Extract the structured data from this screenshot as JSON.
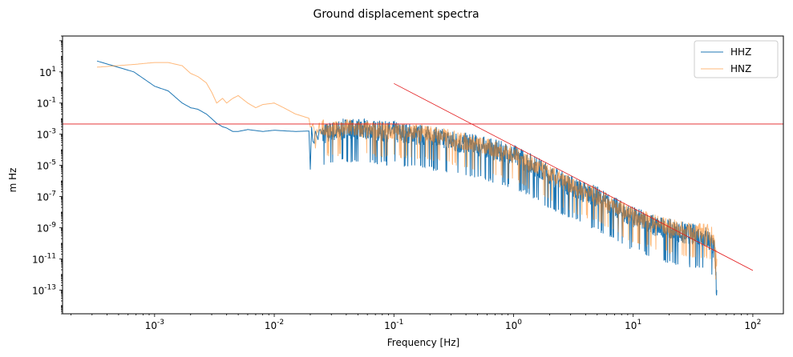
{
  "chart_data": {
    "type": "line",
    "title": "Ground displacement spectra",
    "xlabel": "Frequency [Hz]",
    "ylabel": "m Hz",
    "xscale": "log",
    "yscale": "log",
    "xlim": [
      0.00017,
      180
    ],
    "ylim": [
      3e-15,
      2000
    ],
    "x_tick_labels": [
      "10^-3",
      "10^-2",
      "10^-1",
      "10^0",
      "10^1",
      "10^2"
    ],
    "x_tick_values": [
      0.001,
      0.01,
      0.1,
      1,
      10,
      100
    ],
    "y_tick_labels": [
      "10^1",
      "10^-1",
      "10^-3",
      "10^-5",
      "10^-7",
      "10^-9",
      "10^-11",
      "10^-13"
    ],
    "y_tick_values": [
      10,
      0.1,
      0.001,
      1e-05,
      1e-07,
      1e-09,
      1e-11,
      1e-13
    ],
    "legend": "top-right",
    "colors": {
      "HHZ": "#1f77b4",
      "HNZ": "#ff7f0e",
      "reference": "#e31a1c"
    },
    "series": [
      {
        "name": "HHZ",
        "x": [
          0.00033,
          0.00067,
          0.001,
          0.0013,
          0.0017,
          0.002,
          0.0023,
          0.0027,
          0.003,
          0.0033,
          0.0037,
          0.004,
          0.0045,
          0.005,
          0.006,
          0.008,
          0.01,
          0.015,
          0.02,
          0.025,
          0.03,
          0.035,
          0.04,
          0.05,
          0.06,
          0.08,
          0.1,
          0.15,
          0.2,
          0.3,
          0.5,
          0.7,
          1,
          1.5,
          2,
          3,
          5,
          7,
          10,
          15,
          20,
          30,
          40,
          45,
          48,
          50
        ],
        "y": [
          50,
          10,
          1.2,
          0.6,
          0.1,
          0.05,
          0.04,
          0.02,
          0.01,
          0.005,
          0.003,
          0.0025,
          0.0015,
          0.0015,
          0.002,
          0.0015,
          0.0018,
          0.0015,
          0.0016,
          0.002,
          0.003,
          0.0035,
          0.005,
          0.004,
          0.004,
          0.003,
          0.003,
          0.002,
          0.0015,
          0.0008,
          0.0004,
          0.0002,
          0.0001,
          2e-05,
          5e-06,
          1e-06,
          2e-07,
          4e-08,
          1e-08,
          3e-09,
          1.5e-09,
          8e-10,
          6e-10,
          3e-10,
          5e-11,
          1e-13
        ],
        "noise": 1.5
      },
      {
        "name": "HNZ",
        "x": [
          0.00033,
          0.00067,
          0.001,
          0.0013,
          0.0017,
          0.002,
          0.0023,
          0.0027,
          0.003,
          0.0033,
          0.0037,
          0.004,
          0.0045,
          0.005,
          0.006,
          0.007,
          0.008,
          0.01,
          0.012,
          0.015,
          0.02,
          0.025,
          0.03,
          0.04,
          0.05,
          0.08,
          0.1,
          0.2,
          0.3,
          0.5,
          1,
          2,
          3,
          5,
          10,
          20,
          30,
          40,
          45,
          48,
          50
        ],
        "y": [
          20,
          30,
          40,
          40,
          25,
          8,
          5,
          2,
          0.5,
          0.1,
          0.2,
          0.1,
          0.2,
          0.3,
          0.1,
          0.05,
          0.08,
          0.1,
          0.05,
          0.02,
          0.01,
          0.005,
          0.003,
          0.005,
          0.004,
          0.003,
          0.003,
          0.002,
          0.001,
          0.0004,
          0.0001,
          5e-06,
          1e-06,
          2e-07,
          1e-08,
          2e-09,
          1e-09,
          1e-09,
          8e-10,
          2e-10,
          1e-11
        ],
        "noise": 1.2
      }
    ],
    "reference_lines": [
      {
        "label": "",
        "x": [
          0.00017,
          180
        ],
        "y": [
          0.0045,
          0.0045
        ]
      },
      {
        "label": "",
        "x": [
          0.1,
          100
        ],
        "y": [
          1.8,
          1.8e-12
        ]
      }
    ]
  }
}
